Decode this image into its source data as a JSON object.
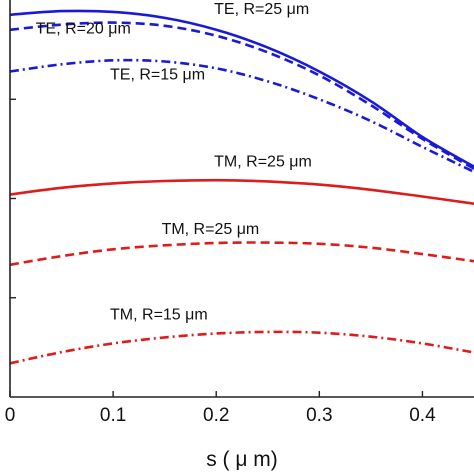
{
  "chart_data": {
    "type": "line",
    "xlabel": "s ( μ m)",
    "ylabel": "",
    "xlim": [
      0,
      0.45
    ],
    "ylim": [
      0,
      1
    ],
    "x_ticks": [
      0,
      0.1,
      0.2,
      0.3,
      0.4
    ],
    "x_tick_labels": [
      "0",
      "0.1",
      "0.2",
      "0.3",
      "0.4"
    ],
    "y_ticks": [
      0.25,
      0.5,
      0.75
    ],
    "grid": false,
    "series": [
      {
        "name": "TE, R=25 μm",
        "color": "#1a1ad6",
        "dash": "solid",
        "x": [
          0,
          0.05,
          0.1,
          0.15,
          0.2,
          0.25,
          0.3,
          0.35,
          0.4,
          0.45
        ],
        "y": [
          0.963,
          0.972,
          0.97,
          0.955,
          0.925,
          0.88,
          0.82,
          0.745,
          0.655,
          0.58
        ]
      },
      {
        "name": "TE, R=20 μm",
        "color": "#1a1ad6",
        "dash": "dashed",
        "x": [
          0,
          0.05,
          0.1,
          0.15,
          0.2,
          0.25,
          0.3,
          0.35,
          0.4,
          0.45
        ],
        "y": [
          0.925,
          0.938,
          0.943,
          0.935,
          0.91,
          0.868,
          0.81,
          0.735,
          0.65,
          0.575
        ]
      },
      {
        "name": "TE, R=15 μm",
        "color": "#1a1ad6",
        "dash": "dashdot",
        "x": [
          0,
          0.05,
          0.1,
          0.15,
          0.2,
          0.25,
          0.3,
          0.35,
          0.4,
          0.45
        ],
        "y": [
          0.82,
          0.838,
          0.848,
          0.845,
          0.828,
          0.795,
          0.75,
          0.695,
          0.63,
          0.567
        ]
      },
      {
        "name": "TM, R=25 μm",
        "color": "#dd1c1c",
        "dash": "solid",
        "x": [
          0,
          0.05,
          0.1,
          0.15,
          0.2,
          0.25,
          0.3,
          0.35,
          0.4,
          0.45
        ],
        "y": [
          0.51,
          0.527,
          0.538,
          0.544,
          0.546,
          0.543,
          0.535,
          0.522,
          0.505,
          0.487
        ]
      },
      {
        "name": "TM, R=25 μm",
        "color": "#dd1c1c",
        "dash": "dashed",
        "x": [
          0,
          0.05,
          0.1,
          0.15,
          0.2,
          0.25,
          0.3,
          0.35,
          0.4,
          0.45
        ],
        "y": [
          0.333,
          0.355,
          0.372,
          0.382,
          0.388,
          0.389,
          0.386,
          0.376,
          0.36,
          0.342
        ]
      },
      {
        "name": "TM, R=15 μm",
        "color": "#dd1c1c",
        "dash": "dashdot",
        "x": [
          0,
          0.05,
          0.1,
          0.15,
          0.2,
          0.25,
          0.3,
          0.35,
          0.4,
          0.45
        ],
        "y": [
          0.085,
          0.113,
          0.135,
          0.15,
          0.16,
          0.164,
          0.162,
          0.152,
          0.135,
          0.112
        ]
      }
    ],
    "annotations": [
      {
        "text": "TE, R=25 μm",
        "x": 0.198,
        "y": 0.965
      },
      {
        "text": "TE, R=20 μm",
        "x": 0.025,
        "y": 0.915
      },
      {
        "text": "TE, R=15 μm",
        "x": 0.097,
        "y": 0.8
      },
      {
        "text": "TM, R=25 μm",
        "x": 0.198,
        "y": 0.58
      },
      {
        "text": "TM, R=25 μm",
        "x": 0.147,
        "y": 0.41
      },
      {
        "text": "TM, R=15 μm",
        "x": 0.097,
        "y": 0.195
      }
    ]
  }
}
